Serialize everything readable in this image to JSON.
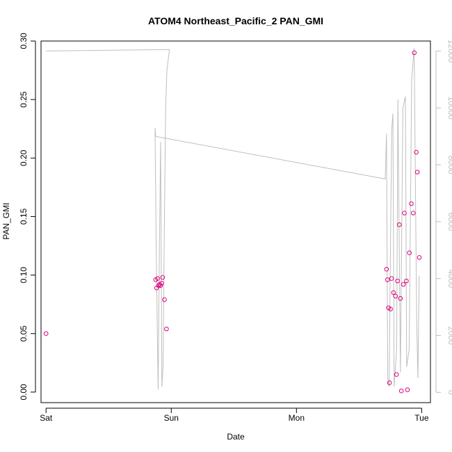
{
  "chart_data": {
    "type": "scatter",
    "title": "ATOM4 Northeast_Pacific_2 PAN_GMI",
    "xlabel": "Date",
    "ylabel": "PAN_GMI",
    "x_unit": "days",
    "xlim": [
      -0.04,
      3.07
    ],
    "ylim": [
      -0.009,
      0.3
    ],
    "y2lim": [
      -360,
      12350
    ],
    "x_ticks": [
      {
        "value": 0,
        "label": "Sat"
      },
      {
        "value": 1,
        "label": "Sun"
      },
      {
        "value": 2,
        "label": "Mon"
      },
      {
        "value": 3,
        "label": "Tue"
      }
    ],
    "y_ticks": [
      {
        "value": 0.0,
        "label": "0.00"
      },
      {
        "value": 0.05,
        "label": "0.05"
      },
      {
        "value": 0.1,
        "label": "0.10"
      },
      {
        "value": 0.15,
        "label": "0.15"
      },
      {
        "value": 0.2,
        "label": "0.20"
      },
      {
        "value": 0.25,
        "label": "0.25"
      },
      {
        "value": 0.3,
        "label": "0.30"
      }
    ],
    "y2_ticks": [
      {
        "value": 0,
        "label": "0"
      },
      {
        "value": 2000,
        "label": "2000"
      },
      {
        "value": 4000,
        "label": "4000"
      },
      {
        "value": 6000,
        "label": "6000"
      },
      {
        "value": 8000,
        "label": "8000"
      },
      {
        "value": 10000,
        "label": "10000"
      },
      {
        "value": 12000,
        "label": "12000"
      }
    ],
    "series": [
      {
        "axis": "left",
        "kind": "points",
        "color": "#e0007f",
        "points": [
          [
            0.0,
            0.05
          ],
          [
            0.875,
            0.096
          ],
          [
            0.883,
            0.089
          ],
          [
            0.891,
            0.097
          ],
          [
            0.899,
            0.091
          ],
          [
            0.907,
            0.092
          ],
          [
            0.915,
            0.091
          ],
          [
            0.923,
            0.093
          ],
          [
            0.931,
            0.098
          ],
          [
            0.946,
            0.079
          ],
          [
            0.962,
            0.054
          ],
          [
            2.719,
            0.105
          ],
          [
            2.727,
            0.096
          ],
          [
            2.735,
            0.072
          ],
          [
            2.743,
            0.008
          ],
          [
            2.751,
            0.071
          ],
          [
            2.759,
            0.097
          ],
          [
            2.775,
            0.085
          ],
          [
            2.791,
            0.082
          ],
          [
            2.799,
            0.015
          ],
          [
            2.807,
            0.095
          ],
          [
            2.822,
            0.143
          ],
          [
            2.83,
            0.08
          ],
          [
            2.838,
            0.001
          ],
          [
            2.854,
            0.092
          ],
          [
            2.862,
            0.153
          ],
          [
            2.878,
            0.095
          ],
          [
            2.886,
            0.002
          ],
          [
            2.902,
            0.119
          ],
          [
            2.917,
            0.161
          ],
          [
            2.933,
            0.153
          ],
          [
            2.941,
            0.29
          ],
          [
            2.957,
            0.205
          ],
          [
            2.965,
            0.188
          ],
          [
            2.981,
            0.115
          ]
        ]
      },
      {
        "axis": "right",
        "kind": "line",
        "color": "#bebebe",
        "points": [
          [
            0.0,
            12000
          ],
          [
            0.985,
            12050
          ],
          [
            0.965,
            11300
          ],
          [
            0.955,
            10000
          ],
          [
            0.943,
            5000
          ],
          [
            0.935,
            1000
          ],
          [
            0.925,
            200
          ],
          [
            0.915,
            8800
          ],
          [
            0.905,
            5000
          ],
          [
            0.895,
            100
          ],
          [
            0.88,
            5000
          ],
          [
            0.87,
            9300
          ],
          [
            0.875,
            9000
          ],
          [
            2.709,
            7500
          ],
          [
            2.719,
            9100
          ],
          [
            2.729,
            500
          ],
          [
            2.74,
            200
          ],
          [
            2.76,
            9200
          ],
          [
            2.77,
            9800
          ],
          [
            2.78,
            200
          ],
          [
            2.8,
            1500
          ],
          [
            2.81,
            10300
          ],
          [
            2.83,
            700
          ],
          [
            2.85,
            10000
          ],
          [
            2.87,
            10400
          ],
          [
            2.88,
            900
          ],
          [
            2.9,
            1500
          ],
          [
            2.92,
            11000
          ],
          [
            2.94,
            12100
          ],
          [
            2.96,
            2500
          ],
          [
            2.97,
            500
          ],
          [
            2.98,
            4100
          ]
        ]
      }
    ],
    "grid": false,
    "legend": "none"
  }
}
